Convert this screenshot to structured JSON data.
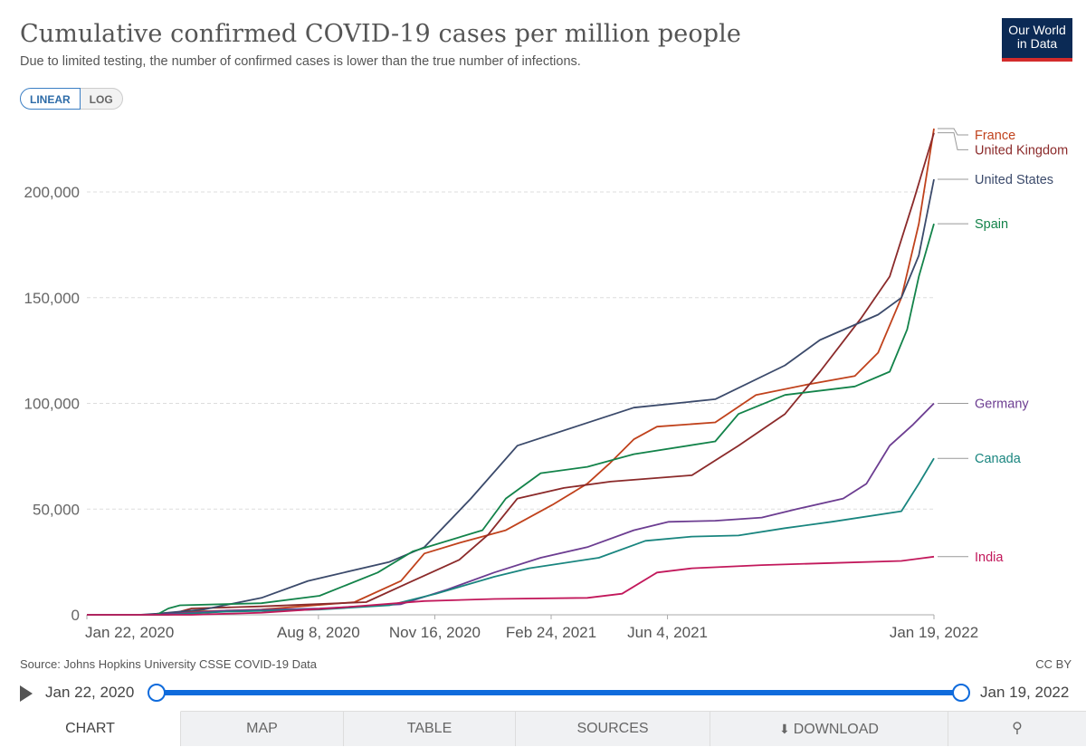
{
  "header": {
    "title": "Cumulative confirmed COVID-19 cases per million people",
    "subtitle": "Due to limited testing, the number of confirmed cases is lower than the true number of infections."
  },
  "logo": {
    "line1": "Our World",
    "line2": "in Data"
  },
  "scale": {
    "linear_label": "LINEAR",
    "log_label": "LOG"
  },
  "footer": {
    "source_prefix": "Source: ",
    "source": "Johns Hopkins University CSSE COVID-19 Data",
    "license": "CC BY"
  },
  "timeline": {
    "start": "Jan 22, 2020",
    "end": "Jan 19, 2022"
  },
  "tabs": {
    "chart": "CHART",
    "map": "MAP",
    "table": "TABLE",
    "sources": "SOURCES",
    "download": "DOWNLOAD",
    "share_icon": "share-icon",
    "download_icon": "download-icon"
  },
  "chart_data": {
    "type": "line",
    "title": "Cumulative confirmed COVID-19 cases per million people",
    "xlabel": "",
    "ylabel": "",
    "ylim": [
      0,
      230000
    ],
    "xlim_days": [
      0,
      728
    ],
    "yticks": [
      0,
      50000,
      100000,
      150000,
      200000
    ],
    "ytick_labels": [
      "0",
      "50,000",
      "100,000",
      "150,000",
      "200,000"
    ],
    "xticks": [
      0,
      199,
      299,
      399,
      499,
      728
    ],
    "xtick_labels": [
      "Jan 22, 2020",
      "Aug 8, 2020",
      "Nov 16, 2020",
      "Feb 24, 2021",
      "Jun 4, 2021",
      "Jan 19, 2022"
    ],
    "x_unit": "days since Jan 22, 2020",
    "grid": "horizontal dashed",
    "legend": "right, labels at line ends",
    "series": [
      {
        "name": "France",
        "color": "#c0421c",
        "label_y": 227000,
        "points": [
          [
            0,
            0
          ],
          [
            60,
            0
          ],
          [
            90,
            1500
          ],
          [
            150,
            2500
          ],
          [
            230,
            6000
          ],
          [
            270,
            16000
          ],
          [
            290,
            29000
          ],
          [
            320,
            34000
          ],
          [
            360,
            40000
          ],
          [
            400,
            52000
          ],
          [
            430,
            62000
          ],
          [
            450,
            72000
          ],
          [
            470,
            83000
          ],
          [
            490,
            89000
          ],
          [
            540,
            91000
          ],
          [
            575,
            104000
          ],
          [
            620,
            109000
          ],
          [
            660,
            113000
          ],
          [
            680,
            124000
          ],
          [
            700,
            150000
          ],
          [
            715,
            185000
          ],
          [
            728,
            230000
          ]
        ]
      },
      {
        "name": "United Kingdom",
        "color": "#8b2a2a",
        "label_y": 220000,
        "points": [
          [
            0,
            0
          ],
          [
            70,
            0
          ],
          [
            90,
            3000
          ],
          [
            150,
            4000
          ],
          [
            240,
            6000
          ],
          [
            280,
            16000
          ],
          [
            320,
            26000
          ],
          [
            345,
            38000
          ],
          [
            370,
            55000
          ],
          [
            410,
            60000
          ],
          [
            450,
            63000
          ],
          [
            520,
            66000
          ],
          [
            560,
            80000
          ],
          [
            600,
            95000
          ],
          [
            630,
            115000
          ],
          [
            665,
            140000
          ],
          [
            690,
            160000
          ],
          [
            710,
            195000
          ],
          [
            728,
            228000
          ]
        ]
      },
      {
        "name": "United States",
        "color": "#3b4a6b",
        "label_y": 206000,
        "points": [
          [
            0,
            0
          ],
          [
            45,
            0
          ],
          [
            60,
            500
          ],
          [
            100,
            2500
          ],
          [
            150,
            8000
          ],
          [
            190,
            16000
          ],
          [
            260,
            25000
          ],
          [
            290,
            32000
          ],
          [
            330,
            55000
          ],
          [
            370,
            80000
          ],
          [
            420,
            89000
          ],
          [
            470,
            98000
          ],
          [
            540,
            102000
          ],
          [
            600,
            118000
          ],
          [
            630,
            130000
          ],
          [
            680,
            142000
          ],
          [
            700,
            150000
          ],
          [
            715,
            170000
          ],
          [
            728,
            206000
          ]
        ]
      },
      {
        "name": "Spain",
        "color": "#13834a",
        "label_y": 185000,
        "points": [
          [
            0,
            0
          ],
          [
            60,
            0
          ],
          [
            70,
            3000
          ],
          [
            80,
            4500
          ],
          [
            150,
            5500
          ],
          [
            200,
            9000
          ],
          [
            250,
            20000
          ],
          [
            280,
            30000
          ],
          [
            340,
            40000
          ],
          [
            360,
            55000
          ],
          [
            390,
            67000
          ],
          [
            430,
            70000
          ],
          [
            470,
            76000
          ],
          [
            540,
            82000
          ],
          [
            560,
            95000
          ],
          [
            600,
            104000
          ],
          [
            660,
            108000
          ],
          [
            690,
            115000
          ],
          [
            705,
            135000
          ],
          [
            715,
            160000
          ],
          [
            728,
            185000
          ]
        ]
      },
      {
        "name": "Germany",
        "color": "#6c3d91",
        "label_y": 100000,
        "points": [
          [
            0,
            0
          ],
          [
            60,
            0
          ],
          [
            120,
            2000
          ],
          [
            200,
            3000
          ],
          [
            270,
            5000
          ],
          [
            310,
            12000
          ],
          [
            350,
            20000
          ],
          [
            390,
            27000
          ],
          [
            430,
            32000
          ],
          [
            470,
            40000
          ],
          [
            500,
            44000
          ],
          [
            540,
            44500
          ],
          [
            580,
            46000
          ],
          [
            610,
            50000
          ],
          [
            650,
            55000
          ],
          [
            670,
            62000
          ],
          [
            690,
            80000
          ],
          [
            710,
            90000
          ],
          [
            728,
            100000
          ]
        ]
      },
      {
        "name": "Canada",
        "color": "#19857f",
        "label_y": 74000,
        "points": [
          [
            0,
            0
          ],
          [
            70,
            0
          ],
          [
            120,
            1500
          ],
          [
            200,
            2500
          ],
          [
            260,
            4500
          ],
          [
            300,
            10000
          ],
          [
            350,
            18000
          ],
          [
            380,
            22000
          ],
          [
            440,
            27000
          ],
          [
            480,
            35000
          ],
          [
            520,
            37000
          ],
          [
            560,
            37500
          ],
          [
            600,
            41000
          ],
          [
            640,
            44000
          ],
          [
            700,
            49000
          ],
          [
            715,
            62000
          ],
          [
            728,
            74000
          ]
        ]
      },
      {
        "name": "India",
        "color": "#c2185b",
        "label_y": 27500,
        "points": [
          [
            0,
            0
          ],
          [
            90,
            0
          ],
          [
            150,
            1000
          ],
          [
            220,
            3500
          ],
          [
            290,
            6500
          ],
          [
            350,
            7500
          ],
          [
            430,
            8000
          ],
          [
            460,
            10000
          ],
          [
            490,
            20000
          ],
          [
            520,
            22000
          ],
          [
            580,
            23500
          ],
          [
            640,
            24500
          ],
          [
            700,
            25500
          ],
          [
            728,
            27500
          ]
        ]
      }
    ]
  }
}
